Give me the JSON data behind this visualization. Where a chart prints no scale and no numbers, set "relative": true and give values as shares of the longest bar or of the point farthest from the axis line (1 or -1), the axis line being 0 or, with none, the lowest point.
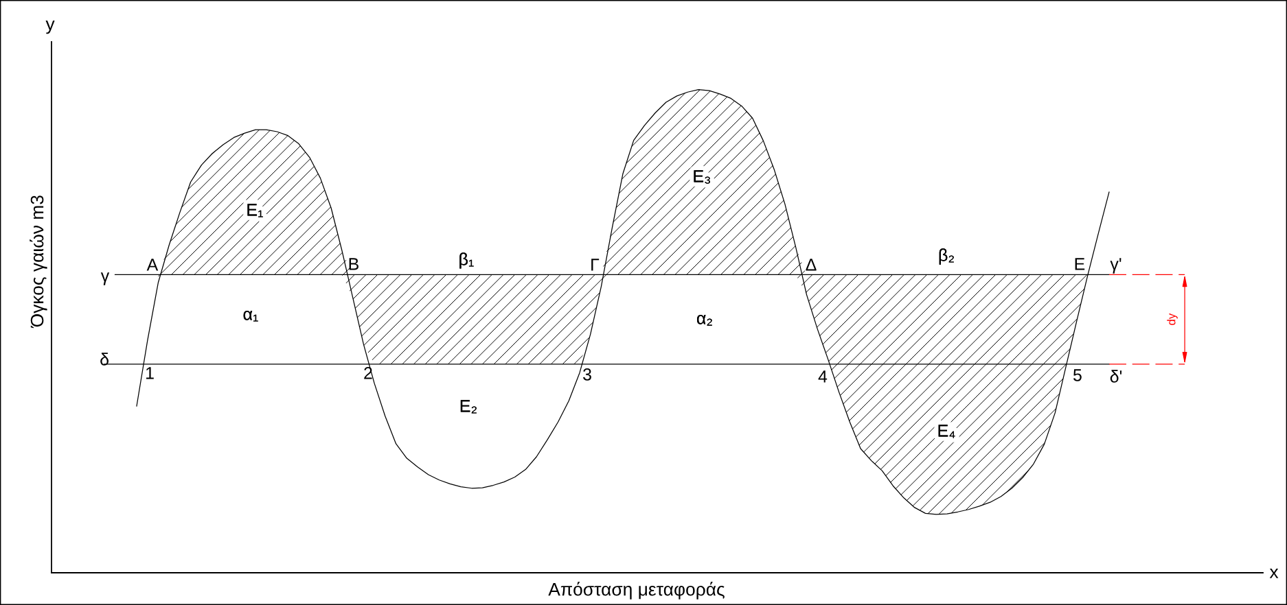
{
  "chart_data": {
    "type": "line",
    "relative": true,
    "xlabel": "Απόσταση μεταφοράς",
    "ylabel": "Όγκος γαιών m3",
    "categories": [
      null,
      null,
      null,
      null,
      null,
      null,
      null,
      null,
      null,
      null,
      null,
      null,
      null,
      null,
      null,
      null,
      null,
      null,
      null,
      null,
      null,
      null,
      null,
      null,
      null,
      null,
      null,
      null,
      null,
      null,
      null,
      null,
      null,
      null,
      null,
      null,
      null,
      null,
      null,
      null,
      null,
      null,
      null,
      null,
      null,
      null,
      null,
      null,
      null,
      null,
      null,
      null,
      null,
      null,
      null,
      null,
      null,
      null,
      null,
      null,
      null,
      null,
      null,
      null,
      null,
      null,
      null,
      null,
      null,
      null,
      null,
      null,
      null,
      null,
      null,
      null,
      null,
      null,
      null,
      null,
      null,
      null,
      null,
      null,
      null,
      null,
      null,
      null,
      null,
      null,
      null,
      null,
      null,
      null,
      null,
      null,
      null,
      null,
      null,
      null,
      null
    ],
    "series": [
      {
        "color": "#000000",
        "values": [
          null,
          null,
          null,
          0.345,
          0.48,
          0.601,
          0.678,
          0.746,
          0.809,
          0.844,
          0.868,
          0.886,
          0.901,
          0.91,
          0.917,
          0.917,
          0.913,
          0.905,
          0.888,
          0.86,
          0.817,
          0.755,
          0.667,
          0.57,
          0.473,
          0.392,
          0.324,
          0.267,
          0.237,
          0.219,
          0.203,
          0.192,
          0.184,
          0.178,
          0.175,
          0.176,
          0.181,
          0.188,
          0.198,
          0.214,
          0.24,
          0.275,
          0.312,
          0.356,
          0.414,
          0.494,
          0.593,
          0.713,
          0.826,
          0.895,
          0.926,
          0.952,
          0.974,
          0.987,
          0.995,
          1.0,
          0.998,
          0.991,
          0.982,
          0.966,
          0.941,
          0.894,
          0.835,
          0.763,
          0.674,
          0.576,
          0.505,
          0.441,
          0.374,
          0.312,
          0.257,
          0.232,
          0.211,
          0.18,
          0.155,
          0.135,
          0.123,
          0.121,
          0.122,
          0.126,
          0.131,
          0.138,
          0.146,
          0.158,
          0.175,
          0.197,
          0.225,
          0.266,
          0.331,
          0.426,
          0.521,
          0.614,
          0.702,
          0.788,
          null,
          null,
          null,
          null,
          null,
          null,
          null
        ],
        "lower": [
          null,
          null,
          null,
          null,
          null,
          0.601,
          0.617,
          0.617,
          0.617,
          0.617,
          0.617,
          0.617,
          0.617,
          0.617,
          0.617,
          0.617,
          0.617,
          0.617,
          0.617,
          0.617,
          0.617,
          0.617,
          0.617,
          0.57,
          0.473,
          0.432,
          0.432,
          0.432,
          0.432,
          0.432,
          0.432,
          0.432,
          0.432,
          0.432,
          0.432,
          0.432,
          0.432,
          0.432,
          0.432,
          0.432,
          0.432,
          0.432,
          0.432,
          0.432,
          0.432,
          0.494,
          0.593,
          0.617,
          0.617,
          0.617,
          0.617,
          0.617,
          0.617,
          0.617,
          0.617,
          0.617,
          0.617,
          0.617,
          0.617,
          0.617,
          0.617,
          0.617,
          0.617,
          0.617,
          0.617,
          0.576,
          0.505,
          0.441,
          0.374,
          0.312,
          0.257,
          0.232,
          0.211,
          0.18,
          0.155,
          0.135,
          0.123,
          0.121,
          0.122,
          0.126,
          0.131,
          0.138,
          0.146,
          0.158,
          0.175,
          0.197,
          0.225,
          0.266,
          0.331,
          0.426,
          0.521,
          0.614,
          null,
          null,
          null,
          null,
          null,
          null,
          null,
          null,
          null
        ],
        "upper": [
          null,
          null,
          null,
          null,
          null,
          0.617,
          0.678,
          0.746,
          0.809,
          0.844,
          0.868,
          0.886,
          0.901,
          0.91,
          0.917,
          0.917,
          0.913,
          0.905,
          0.888,
          0.86,
          0.817,
          0.755,
          0.667,
          0.617,
          0.617,
          0.617,
          0.617,
          0.617,
          0.617,
          0.617,
          0.617,
          0.617,
          0.617,
          0.617,
          0.617,
          0.617,
          0.617,
          0.617,
          0.617,
          0.617,
          0.617,
          0.617,
          0.617,
          0.617,
          0.617,
          0.617,
          0.617,
          0.713,
          0.826,
          0.895,
          0.926,
          0.952,
          0.974,
          0.987,
          0.995,
          1.0,
          0.998,
          0.991,
          0.982,
          0.966,
          0.941,
          0.894,
          0.835,
          0.763,
          0.674,
          0.617,
          0.617,
          0.617,
          0.617,
          0.617,
          0.617,
          0.617,
          0.617,
          0.617,
          0.617,
          0.617,
          0.617,
          0.617,
          0.617,
          0.617,
          0.617,
          0.617,
          0.617,
          0.617,
          0.617,
          0.617,
          0.617,
          0.617,
          0.617,
          0.617,
          0.617,
          0.617,
          null,
          null,
          null,
          null,
          null,
          null,
          null,
          null,
          null
        ]
      },
      {
        "color": "#000000",
        "values": [
          null,
          0.617,
          0.617,
          0.617,
          0.617,
          0.617,
          0.617,
          0.617,
          0.617,
          0.617,
          0.617,
          0.617,
          0.617,
          0.617,
          0.617,
          0.617,
          0.617,
          0.617,
          0.617,
          0.617,
          0.617,
          0.617,
          0.617,
          0.617,
          0.617,
          0.617,
          0.617,
          0.617,
          0.617,
          0.617,
          0.617,
          0.617,
          0.617,
          0.617,
          0.617,
          0.617,
          0.617,
          0.617,
          0.617,
          0.617,
          0.617,
          0.617,
          0.617,
          0.617,
          0.617,
          0.617,
          0.617,
          0.617,
          0.617,
          0.617,
          0.617,
          0.617,
          0.617,
          0.617,
          0.617,
          0.617,
          0.617,
          0.617,
          0.617,
          0.617,
          0.617,
          0.617,
          0.617,
          0.617,
          0.617,
          0.617,
          0.617,
          0.617,
          0.617,
          0.617,
          0.617,
          0.617,
          0.617,
          0.617,
          0.617,
          0.617,
          0.617,
          0.617,
          0.617,
          0.617,
          0.617,
          0.617,
          0.617,
          0.617,
          0.617,
          0.617,
          0.617,
          0.617,
          0.617,
          0.617,
          0.617,
          0.617,
          0.617,
          0.617,
          null,
          null,
          null,
          null,
          null,
          null,
          null
        ]
      },
      {
        "color": "#000000",
        "values": [
          0.432,
          0.432,
          0.432,
          0.432,
          0.432,
          0.432,
          0.432,
          0.432,
          0.432,
          0.432,
          0.432,
          0.432,
          0.432,
          0.432,
          0.432,
          0.432,
          0.432,
          0.432,
          0.432,
          0.432,
          0.432,
          0.432,
          0.432,
          0.432,
          0.432,
          0.432,
          0.432,
          0.432,
          0.432,
          0.432,
          0.432,
          0.432,
          0.432,
          0.432,
          0.432,
          0.432,
          0.432,
          0.432,
          0.432,
          0.432,
          0.432,
          0.432,
          0.432,
          0.432,
          0.432,
          0.432,
          0.432,
          0.432,
          0.432,
          0.432,
          0.432,
          0.432,
          0.432,
          0.432,
          0.432,
          0.432,
          0.432,
          0.432,
          0.432,
          0.432,
          0.432,
          0.432,
          0.432,
          0.432,
          0.432,
          0.432,
          0.432,
          0.432,
          0.432,
          0.432,
          0.432,
          0.432,
          0.432,
          0.432,
          0.432,
          0.432,
          0.432,
          0.432,
          0.432,
          0.432,
          0.432,
          0.432,
          0.432,
          0.432,
          0.432,
          0.432,
          0.432,
          0.432,
          0.432,
          0.432,
          0.432,
          0.432,
          0.432,
          0.432,
          null,
          null,
          null,
          null,
          null,
          null,
          null
        ]
      },
      {
        "color": "#ff0000",
        "line_style": "dashed",
        "values": [
          null,
          null,
          null,
          null,
          null,
          null,
          null,
          null,
          null,
          null,
          null,
          null,
          null,
          null,
          null,
          null,
          null,
          null,
          null,
          null,
          null,
          null,
          null,
          null,
          null,
          null,
          null,
          null,
          null,
          null,
          null,
          null,
          null,
          null,
          null,
          null,
          null,
          null,
          null,
          null,
          null,
          null,
          null,
          null,
          null,
          null,
          null,
          null,
          null,
          null,
          null,
          null,
          null,
          null,
          null,
          null,
          null,
          null,
          null,
          null,
          null,
          null,
          null,
          null,
          null,
          null,
          null,
          null,
          null,
          null,
          null,
          null,
          null,
          null,
          null,
          null,
          null,
          null,
          null,
          null,
          null,
          null,
          null,
          null,
          null,
          null,
          null,
          null,
          null,
          null,
          null,
          null,
          null,
          0.617,
          0.617,
          0.617,
          0.617,
          0.617,
          0.617,
          0.617,
          0.617
        ]
      },
      {
        "color": "#ff0000",
        "line_style": "dashed",
        "values": [
          null,
          null,
          null,
          null,
          null,
          null,
          null,
          null,
          null,
          null,
          null,
          null,
          null,
          null,
          null,
          null,
          null,
          null,
          null,
          null,
          null,
          null,
          null,
          null,
          null,
          null,
          null,
          null,
          null,
          null,
          null,
          null,
          null,
          null,
          null,
          null,
          null,
          null,
          null,
          null,
          null,
          null,
          null,
          null,
          null,
          null,
          null,
          null,
          null,
          null,
          null,
          null,
          null,
          null,
          null,
          null,
          null,
          null,
          null,
          null,
          null,
          null,
          null,
          null,
          null,
          null,
          null,
          null,
          null,
          null,
          null,
          null,
          null,
          null,
          null,
          null,
          null,
          null,
          null,
          null,
          null,
          null,
          null,
          null,
          null,
          null,
          null,
          null,
          null,
          null,
          null,
          null,
          null,
          0.432,
          0.432,
          0.432,
          0.432,
          0.432,
          0.432,
          0.432,
          0.432
        ]
      }
    ],
    "annotations": [
      "A",
      "B",
      "Γ",
      "Δ",
      "E",
      "1",
      "2",
      "3",
      "4",
      "5",
      "γ",
      "δ",
      "γ'",
      "δ'",
      "E₁",
      "α₁",
      "β₁",
      "E₂",
      "E₃",
      "α₂",
      "β₂",
      "E₄",
      "dy",
      "y",
      "x"
    ]
  }
}
